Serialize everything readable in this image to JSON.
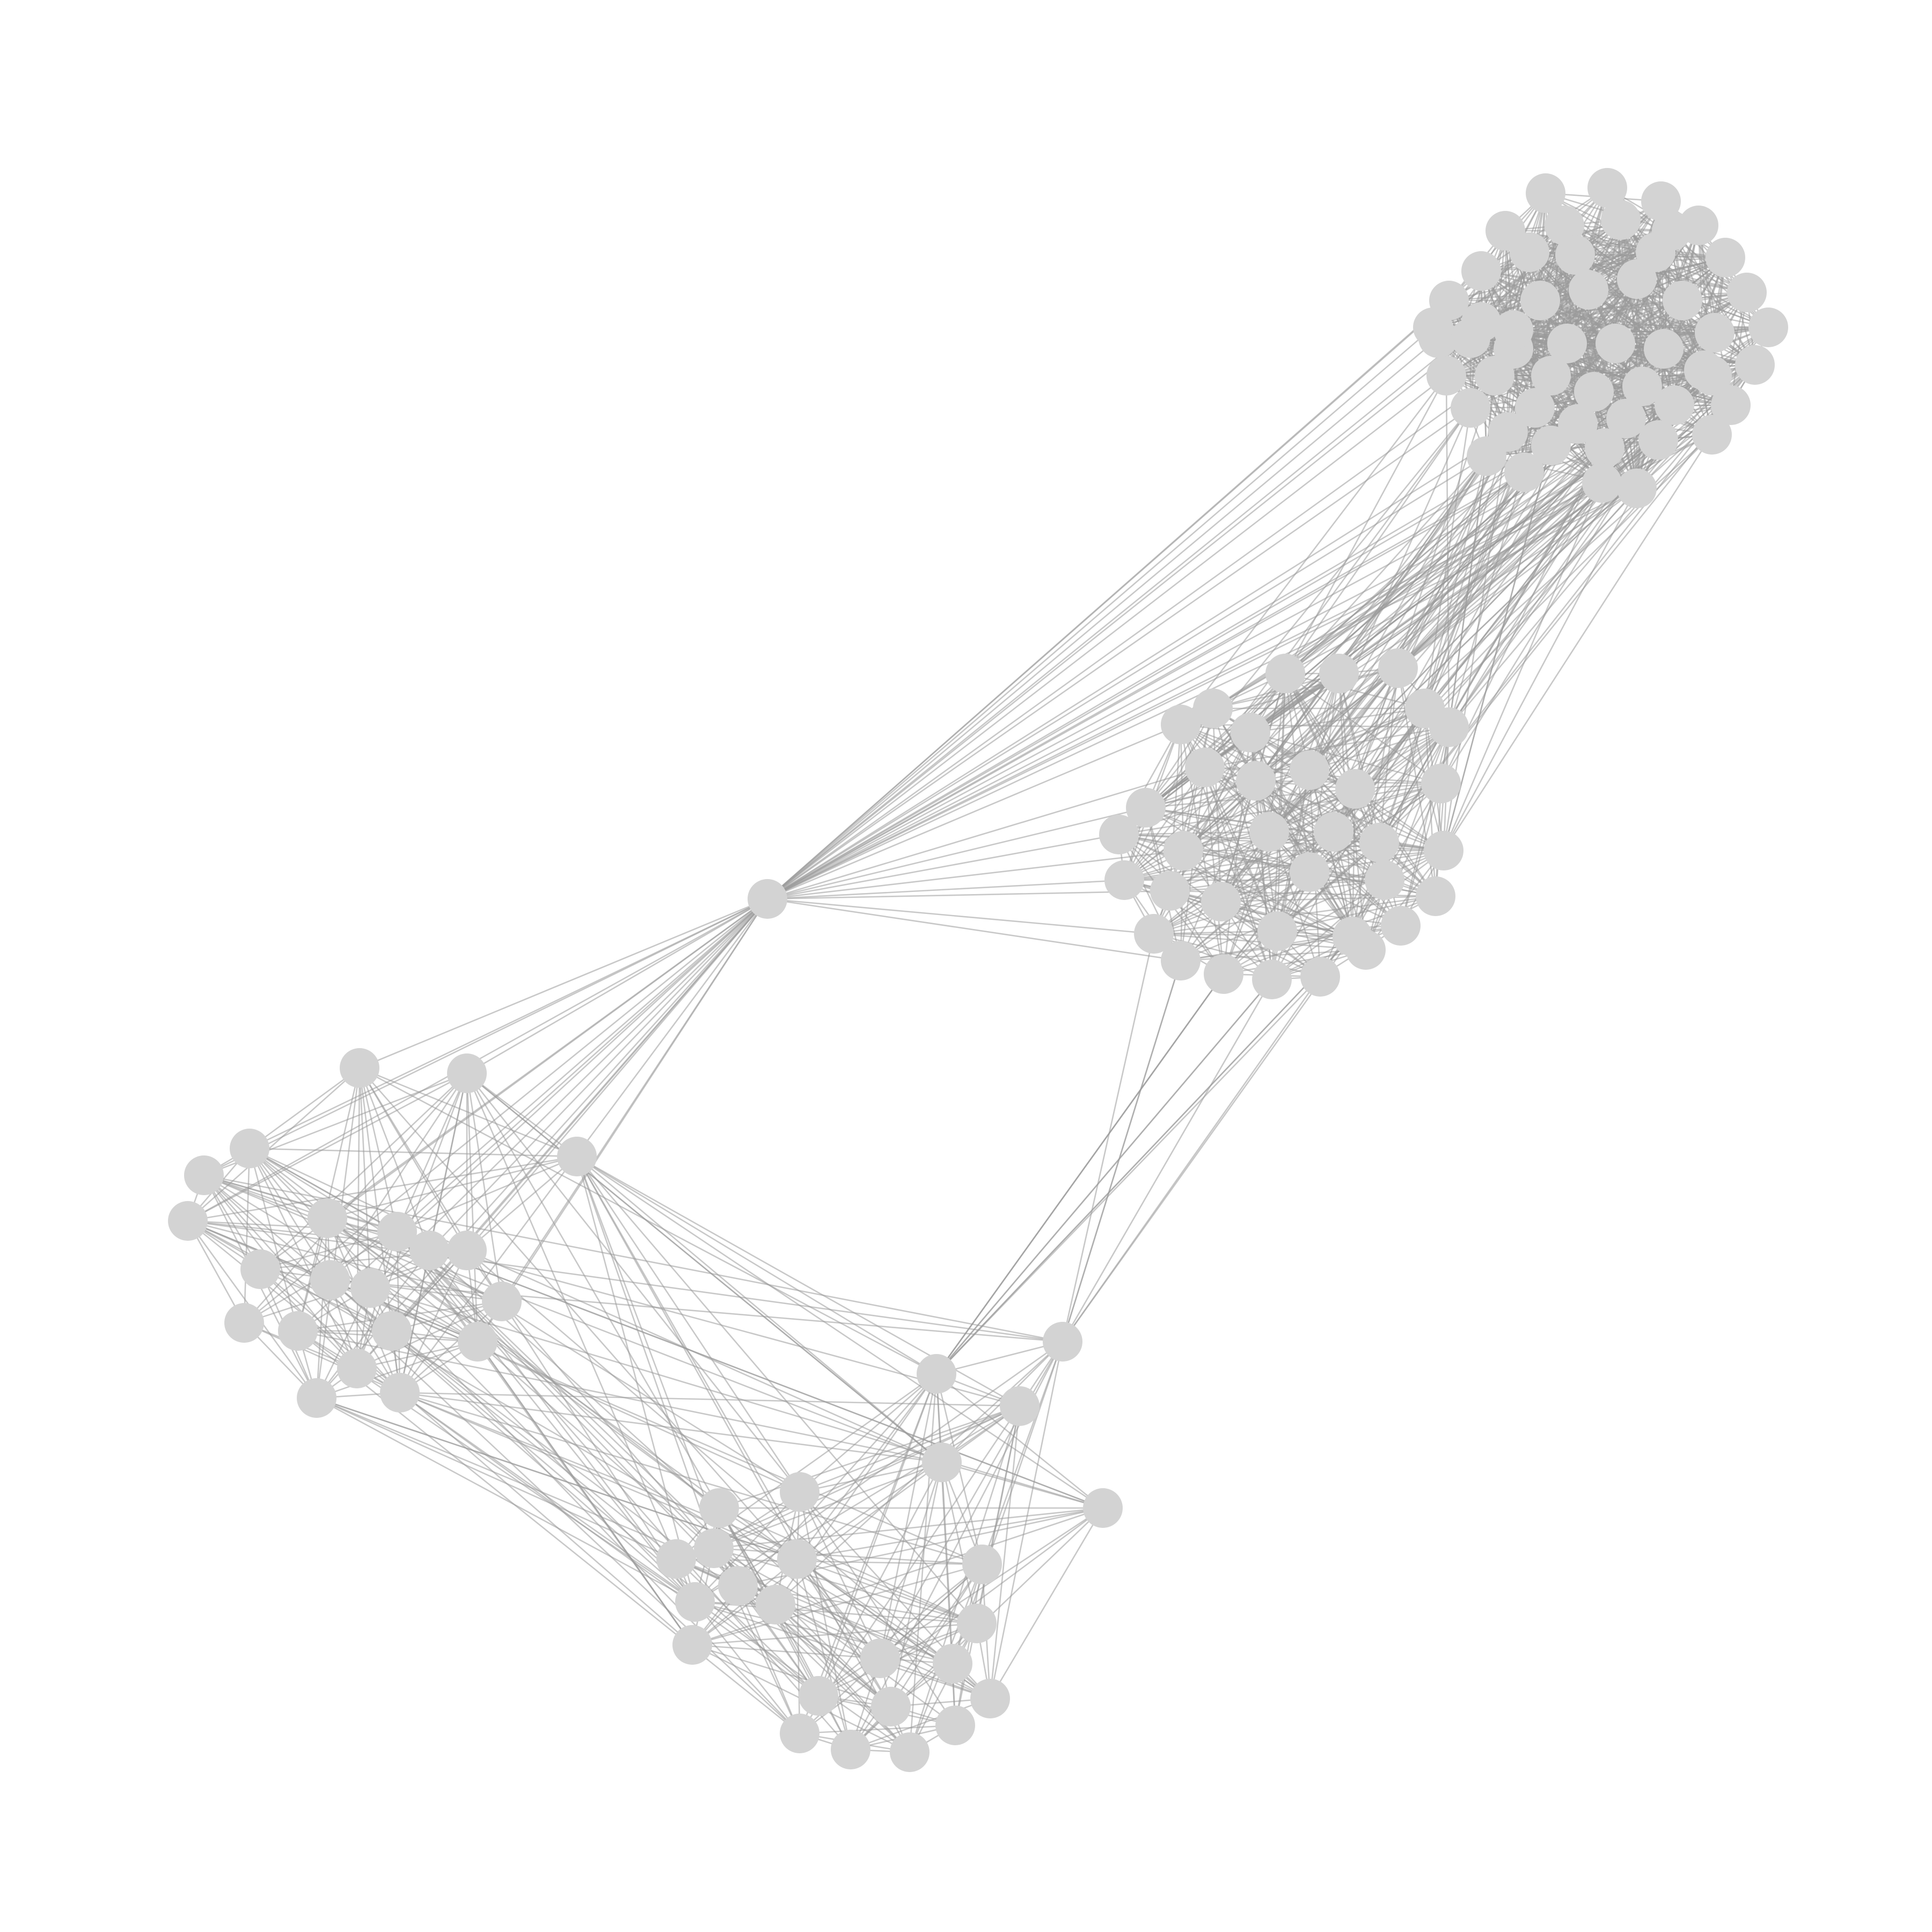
{
  "diagram": {
    "type": "network-graph",
    "layout": "force-directed",
    "labels": "none",
    "node_color": "#d3d3d3",
    "edge_color": "#9a9a9a",
    "background": "#ffffff",
    "cluster_count": 4,
    "bridge_node_count": 1
  }
}
